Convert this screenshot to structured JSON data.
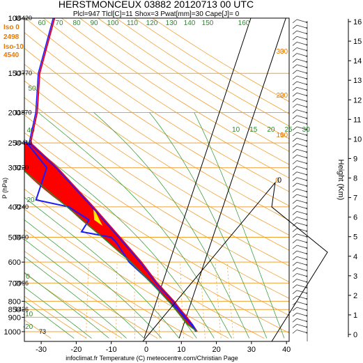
{
  "chart_data": {
    "type": "line",
    "title": "HERSTMONCEUX 03882 20120713 00 UTC",
    "subtitle": "Plcl=947 Tlcl[C]=11 Shox=3 Pwat[mm]=30 Cape[J]= 0",
    "xlabel": "infoclimat.fr Temperature (C) meteocentre.com/Christian Page",
    "ylabel": "P (hPa)",
    "y2label": "Height (Km)",
    "x_ticks": [
      -30,
      -20,
      -10,
      0,
      10,
      20,
      30,
      40
    ],
    "xlim": [
      -35,
      40
    ],
    "pressure_ticks": [
      100,
      150,
      200,
      250,
      300,
      400,
      500,
      600,
      700,
      800,
      850,
      900,
      1000
    ],
    "ylim": [
      1050,
      100
    ],
    "height_ticks": [
      0,
      1,
      2,
      3,
      4,
      5,
      6,
      7,
      8,
      9,
      10,
      11,
      12,
      13,
      14,
      15,
      16
    ],
    "level_heights": [
      {
        "p": 100,
        "h": "16420"
      },
      {
        "p": 150,
        "h": "13770"
      },
      {
        "p": 200,
        "h": "11870"
      },
      {
        "p": 250,
        "h": "10410"
      },
      {
        "p": 300,
        "h": "9220"
      },
      {
        "p": 400,
        "h": "7240"
      },
      {
        "p": 500,
        "h": "5600"
      },
      {
        "p": 700,
        "h": "2996"
      },
      {
        "p": 850,
        "h": "1426"
      },
      {
        "p": 1000,
        "h": "73"
      }
    ],
    "freezing_levels": [
      {
        "label": "Iso 0",
        "value": "2498"
      },
      {
        "label": "Iso-10",
        "value": "4540"
      }
    ],
    "isotherm_labels": [
      -10,
      0,
      10,
      20,
      30
    ],
    "dry_adiabat_labels": [
      -20,
      -10,
      0,
      10,
      20,
      30,
      40,
      50,
      60,
      70,
      80,
      90,
      100,
      110,
      120,
      130,
      140,
      150,
      160
    ],
    "mixing_ratio_labels": [
      0,
      10,
      20,
      30
    ],
    "series": [
      {
        "name": "temperature",
        "color": "#e4002b",
        "points": [
          [
            1000,
            14.5
          ],
          [
            950,
            12.5
          ],
          [
            900,
            10.2
          ],
          [
            850,
            7.6
          ],
          [
            800,
            5.0
          ],
          [
            700,
            -1.5
          ],
          [
            600,
            -8.0
          ],
          [
            500,
            -16.5
          ],
          [
            400,
            -27.0
          ],
          [
            300,
            -41.0
          ],
          [
            250,
            -51.0
          ],
          [
            200,
            -52.0
          ],
          [
            150,
            -55.0
          ],
          [
            100,
            -56.0
          ]
        ]
      },
      {
        "name": "dewpoint",
        "color": "#1a1aff",
        "points": [
          [
            1000,
            14.2
          ],
          [
            950,
            12.5
          ],
          [
            900,
            9.5
          ],
          [
            850,
            7.0
          ],
          [
            800,
            3.5
          ],
          [
            700,
            -3.0
          ],
          [
            600,
            -11.5
          ],
          [
            520,
            -17.0
          ],
          [
            500,
            -19.0
          ],
          [
            480,
            -28.0
          ],
          [
            440,
            -27.0
          ],
          [
            400,
            -34.0
          ],
          [
            380,
            -44.0
          ],
          [
            300,
            -44.0
          ],
          [
            250,
            -52.0
          ],
          [
            230,
            -64.0
          ],
          [
            200,
            -72.0
          ],
          [
            170,
            -75.0
          ],
          [
            150,
            -77.0
          ],
          [
            100,
            -78.0
          ]
        ]
      },
      {
        "name": "parcel",
        "color": "#2a8a2a",
        "points": [
          [
            1000,
            14.5
          ],
          [
            947,
            11.0
          ],
          [
            900,
            8.8
          ],
          [
            850,
            6.2
          ],
          [
            800,
            3.5
          ],
          [
            700,
            -3.2
          ],
          [
            600,
            -11.0
          ],
          [
            500,
            -21.5
          ],
          [
            400,
            -34.5
          ],
          [
            300,
            -51.5
          ],
          [
            250,
            -62.0
          ]
        ]
      }
    ],
    "hodograph_height_labels": [
      "0",
      "10",
      "20",
      "30"
    ],
    "legend": "none",
    "grid": true
  }
}
